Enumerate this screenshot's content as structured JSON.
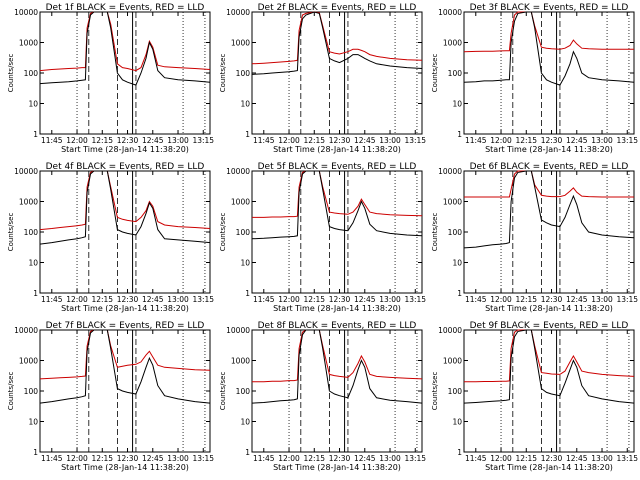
{
  "figure": {
    "common_title_template": "Det {n}f BLACK = Events, RED = LLD",
    "xlabel": "Start Time (28-Jan-14 11:38:20)",
    "ylabel": "Counts/sec",
    "x_tick_labels": [
      "11:45",
      "12:00",
      "12:15",
      "12:30",
      "12:45",
      "13:00",
      "13:15"
    ],
    "y_tick_labels": [
      "1",
      "10",
      "100",
      "1000",
      "10000"
    ],
    "colors": {
      "events": "#000000",
      "lld": "#cc0000",
      "axes": "#000000",
      "background": "#ffffff"
    }
  },
  "chart_data": [
    {
      "type": "line",
      "panel": "1f",
      "title": "Det 1f BLACK = Events, RED = LLD",
      "xlabel": "Start Time (28-Jan-14 11:38:20)",
      "ylabel": "Counts/sec",
      "x_range": [
        "11:38",
        "13:19"
      ],
      "ylim": [
        1,
        10000
      ],
      "yscale": "log",
      "x": [
        "11:38",
        "11:45",
        "11:50",
        "11:55",
        "12:00",
        "12:03",
        "12:05",
        "12:06",
        "12:08",
        "12:10",
        "12:15",
        "12:18",
        "12:20",
        "12:24",
        "12:27",
        "12:30",
        "12:35",
        "12:38",
        "12:41",
        "12:43",
        "12:45",
        "12:48",
        "12:52",
        "13:00",
        "13:10",
        "13:19"
      ],
      "series": [
        {
          "name": "BLACK = Events",
          "values": [
            45,
            48,
            50,
            52,
            55,
            58,
            60,
            2000,
            8000,
            10000,
            10000,
            10000,
            3000,
            100,
            60,
            50,
            40,
            100,
            300,
            1000,
            600,
            120,
            70,
            60,
            55,
            50
          ]
        },
        {
          "name": "RED = LLD",
          "values": [
            120,
            130,
            135,
            140,
            145,
            150,
            150,
            3000,
            9000,
            10000,
            10000,
            10000,
            4000,
            200,
            150,
            140,
            120,
            150,
            400,
            1100,
            700,
            180,
            160,
            150,
            140,
            130
          ]
        }
      ]
    },
    {
      "type": "line",
      "panel": "2f",
      "title": "Det 2f BLACK = Events, RED = LLD",
      "xlabel": "Start Time (28-Jan-14 11:38:20)",
      "ylabel": "Counts/sec",
      "x_range": [
        "11:38",
        "13:19"
      ],
      "ylim": [
        1,
        10000
      ],
      "yscale": "log",
      "x": [
        "11:38",
        "11:45",
        "11:50",
        "11:55",
        "12:00",
        "12:03",
        "12:05",
        "12:06",
        "12:08",
        "12:10",
        "12:15",
        "12:18",
        "12:20",
        "12:24",
        "12:27",
        "12:30",
        "12:35",
        "12:38",
        "12:41",
        "12:43",
        "12:45",
        "12:48",
        "12:52",
        "13:00",
        "13:10",
        "13:19"
      ],
      "series": [
        {
          "name": "BLACK = Events",
          "values": [
            90,
            95,
            100,
            105,
            110,
            115,
            120,
            1500,
            6000,
            8000,
            10000,
            9000,
            3000,
            300,
            250,
            220,
            300,
            400,
            400,
            350,
            300,
            250,
            200,
            170,
            150,
            140
          ]
        },
        {
          "name": "RED = LLD",
          "values": [
            200,
            210,
            220,
            230,
            240,
            250,
            260,
            2500,
            8000,
            9000,
            10000,
            9500,
            3500,
            500,
            450,
            420,
            500,
            600,
            600,
            550,
            500,
            400,
            350,
            300,
            270,
            260
          ]
        }
      ]
    },
    {
      "type": "line",
      "panel": "3f",
      "title": "Det 3f BLACK = Events, RED = LLD",
      "xlabel": "Start Time (28-Jan-14 11:38:20)",
      "ylabel": "Counts/sec",
      "x_range": [
        "11:38",
        "13:19"
      ],
      "ylim": [
        1,
        10000
      ],
      "yscale": "log",
      "x": [
        "11:38",
        "11:45",
        "11:50",
        "11:55",
        "12:00",
        "12:03",
        "12:05",
        "12:06",
        "12:08",
        "12:10",
        "12:15",
        "12:18",
        "12:20",
        "12:24",
        "12:27",
        "12:30",
        "12:35",
        "12:38",
        "12:41",
        "12:43",
        "12:45",
        "12:48",
        "12:52",
        "13:00",
        "13:10",
        "13:19"
      ],
      "series": [
        {
          "name": "BLACK = Events",
          "values": [
            50,
            52,
            55,
            55,
            58,
            60,
            60,
            1000,
            5000,
            9000,
            10000,
            10000,
            3000,
            100,
            60,
            50,
            40,
            80,
            200,
            500,
            300,
            100,
            70,
            60,
            55,
            50
          ]
        },
        {
          "name": "RED = LLD",
          "values": [
            500,
            510,
            520,
            520,
            530,
            540,
            540,
            2000,
            8000,
            10000,
            10000,
            10000,
            3500,
            700,
            650,
            620,
            600,
            650,
            800,
            1200,
            900,
            650,
            620,
            600,
            600,
            600
          ]
        }
      ]
    },
    {
      "type": "line",
      "panel": "4f",
      "title": "Det 4f BLACK = Events, RED = LLD",
      "xlabel": "Start Time (28-Jan-14 11:38:20)",
      "ylabel": "Counts/sec",
      "x_range": [
        "11:38",
        "13:19"
      ],
      "ylim": [
        1,
        10000
      ],
      "yscale": "log",
      "x": [
        "11:38",
        "11:45",
        "11:50",
        "11:55",
        "12:00",
        "12:03",
        "12:05",
        "12:06",
        "12:08",
        "12:10",
        "12:15",
        "12:18",
        "12:20",
        "12:24",
        "12:27",
        "12:30",
        "12:35",
        "12:38",
        "12:41",
        "12:43",
        "12:45",
        "12:48",
        "12:52",
        "13:00",
        "13:10",
        "13:19"
      ],
      "series": [
        {
          "name": "BLACK = Events",
          "values": [
            40,
            45,
            50,
            55,
            60,
            65,
            70,
            2000,
            8000,
            10000,
            10000,
            10000,
            2500,
            120,
            100,
            90,
            80,
            150,
            400,
            900,
            600,
            120,
            60,
            55,
            50,
            45
          ]
        },
        {
          "name": "RED = LLD",
          "values": [
            120,
            130,
            140,
            150,
            160,
            170,
            180,
            3000,
            9000,
            10000,
            10000,
            10000,
            3000,
            300,
            260,
            240,
            220,
            300,
            500,
            1000,
            700,
            220,
            170,
            150,
            140,
            130
          ]
        }
      ]
    },
    {
      "type": "line",
      "panel": "5f",
      "title": "Det 5f BLACK = Events, RED = LLD",
      "xlabel": "Start Time (28-Jan-14 11:38:20)",
      "ylabel": "Counts/sec",
      "x_range": [
        "11:38",
        "13:19"
      ],
      "ylim": [
        1,
        10000
      ],
      "yscale": "log",
      "x": [
        "11:38",
        "11:45",
        "11:50",
        "11:55",
        "12:00",
        "12:03",
        "12:05",
        "12:06",
        "12:08",
        "12:10",
        "12:15",
        "12:18",
        "12:20",
        "12:24",
        "12:27",
        "12:30",
        "12:35",
        "12:38",
        "12:41",
        "12:43",
        "12:45",
        "12:48",
        "12:52",
        "13:00",
        "13:10",
        "13:19"
      ],
      "series": [
        {
          "name": "BLACK = Events",
          "values": [
            60,
            62,
            65,
            68,
            70,
            72,
            75,
            2000,
            8000,
            10000,
            10000,
            10000,
            2500,
            150,
            130,
            120,
            110,
            200,
            500,
            1000,
            600,
            180,
            110,
            90,
            80,
            75
          ]
        },
        {
          "name": "RED = LLD",
          "values": [
            300,
            300,
            310,
            310,
            320,
            320,
            330,
            3000,
            9000,
            10000,
            10000,
            10000,
            3000,
            450,
            420,
            400,
            380,
            450,
            700,
            1200,
            800,
            450,
            400,
            370,
            350,
            340
          ]
        }
      ]
    },
    {
      "type": "line",
      "panel": "6f",
      "title": "Det 6f BLACK = Events, RED = LLD",
      "xlabel": "Start Time (28-Jan-14 11:38:20)",
      "ylabel": "Counts/sec",
      "x_range": [
        "11:38",
        "13:19"
      ],
      "ylim": [
        1,
        10000
      ],
      "yscale": "log",
      "x": [
        "11:38",
        "11:45",
        "11:50",
        "11:55",
        "12:00",
        "12:03",
        "12:05",
        "12:06",
        "12:08",
        "12:10",
        "12:15",
        "12:18",
        "12:20",
        "12:24",
        "12:27",
        "12:30",
        "12:35",
        "12:38",
        "12:41",
        "12:43",
        "12:45",
        "12:48",
        "12:52",
        "13:00",
        "13:10",
        "13:19"
      ],
      "series": [
        {
          "name": "BLACK = Events",
          "values": [
            30,
            32,
            35,
            38,
            40,
            42,
            45,
            1000,
            6000,
            9000,
            10000,
            10000,
            3000,
            250,
            200,
            170,
            150,
            300,
            800,
            1500,
            800,
            200,
            100,
            80,
            70,
            65
          ]
        },
        {
          "name": "RED = LLD",
          "values": [
            1400,
            1400,
            1400,
            1400,
            1400,
            1400,
            1400,
            2500,
            8000,
            10000,
            10000,
            10000,
            3500,
            1600,
            1500,
            1450,
            1450,
            1600,
            2200,
            2800,
            2000,
            1500,
            1450,
            1400,
            1400,
            1400
          ]
        }
      ]
    },
    {
      "type": "line",
      "panel": "7f",
      "title": "Det 7f BLACK = Events, RED = LLD",
      "xlabel": "Start Time (28-Jan-14 11:38:20)",
      "ylabel": "Counts/sec",
      "x_range": [
        "11:38",
        "13:19"
      ],
      "ylim": [
        1,
        10000
      ],
      "yscale": "log",
      "x": [
        "11:38",
        "11:45",
        "11:50",
        "11:55",
        "12:00",
        "12:03",
        "12:05",
        "12:06",
        "12:08",
        "12:10",
        "12:15",
        "12:18",
        "12:20",
        "12:24",
        "12:27",
        "12:30",
        "12:35",
        "12:38",
        "12:41",
        "12:43",
        "12:45",
        "12:48",
        "12:52",
        "13:00",
        "13:10",
        "13:19"
      ],
      "series": [
        {
          "name": "BLACK = Events",
          "values": [
            40,
            45,
            50,
            55,
            60,
            65,
            70,
            2000,
            8000,
            10000,
            10000,
            10000,
            2500,
            120,
            100,
            90,
            80,
            200,
            600,
            1200,
            700,
            150,
            70,
            55,
            45,
            40
          ]
        },
        {
          "name": "RED = LLD",
          "values": [
            250,
            260,
            270,
            280,
            290,
            300,
            310,
            3000,
            9000,
            10000,
            10000,
            10000,
            3000,
            600,
            650,
            700,
            750,
            900,
            1500,
            2000,
            1300,
            700,
            600,
            550,
            500,
            480
          ]
        }
      ]
    },
    {
      "type": "line",
      "panel": "8f",
      "title": "Det 8f BLACK = Events, RED = LLD",
      "xlabel": "Start Time (28-Jan-14 11:38:20)",
      "ylabel": "Counts/sec",
      "x_range": [
        "11:38",
        "13:19"
      ],
      "ylim": [
        1,
        10000
      ],
      "yscale": "log",
      "x": [
        "11:38",
        "11:45",
        "11:50",
        "11:55",
        "12:00",
        "12:03",
        "12:05",
        "12:06",
        "12:08",
        "12:10",
        "12:15",
        "12:18",
        "12:20",
        "12:24",
        "12:27",
        "12:30",
        "12:35",
        "12:38",
        "12:41",
        "12:43",
        "12:45",
        "12:48",
        "12:52",
        "13:00",
        "13:10",
        "13:19"
      ],
      "series": [
        {
          "name": "BLACK = Events",
          "values": [
            40,
            42,
            45,
            48,
            50,
            52,
            55,
            1500,
            7000,
            10000,
            10000,
            10000,
            2500,
            100,
            80,
            70,
            60,
            150,
            500,
            1000,
            600,
            120,
            60,
            50,
            45,
            40
          ]
        },
        {
          "name": "RED = LLD",
          "values": [
            200,
            200,
            210,
            210,
            220,
            220,
            230,
            2500,
            8500,
            10000,
            10000,
            10000,
            3000,
            350,
            320,
            300,
            280,
            400,
            800,
            1400,
            900,
            350,
            300,
            280,
            260,
            250
          ]
        }
      ]
    },
    {
      "type": "line",
      "panel": "9f",
      "title": "Det 9f BLACK = Events, RED = LLD",
      "xlabel": "Start Time (28-Jan-14 11:38:20)",
      "ylabel": "Counts/sec",
      "x_range": [
        "11:38",
        "13:19"
      ],
      "ylim": [
        1,
        10000
      ],
      "yscale": "log",
      "x": [
        "11:38",
        "11:45",
        "11:50",
        "11:55",
        "12:00",
        "12:03",
        "12:05",
        "12:06",
        "12:08",
        "12:10",
        "12:15",
        "12:18",
        "12:20",
        "12:24",
        "12:27",
        "12:30",
        "12:35",
        "12:38",
        "12:41",
        "12:43",
        "12:45",
        "12:48",
        "12:52",
        "13:00",
        "13:10",
        "13:19"
      ],
      "series": [
        {
          "name": "BLACK = Events",
          "values": [
            40,
            42,
            44,
            46,
            48,
            50,
            52,
            1200,
            6000,
            9000,
            10000,
            10000,
            2500,
            120,
            90,
            80,
            70,
            180,
            500,
            1000,
            600,
            150,
            70,
            55,
            45,
            40
          ]
        },
        {
          "name": "RED = LLD",
          "values": [
            200,
            200,
            205,
            205,
            210,
            210,
            215,
            2500,
            8500,
            10000,
            10000,
            10000,
            3000,
            400,
            380,
            360,
            350,
            450,
            900,
            1400,
            900,
            450,
            400,
            350,
            320,
            300
          ]
        }
      ]
    }
  ]
}
